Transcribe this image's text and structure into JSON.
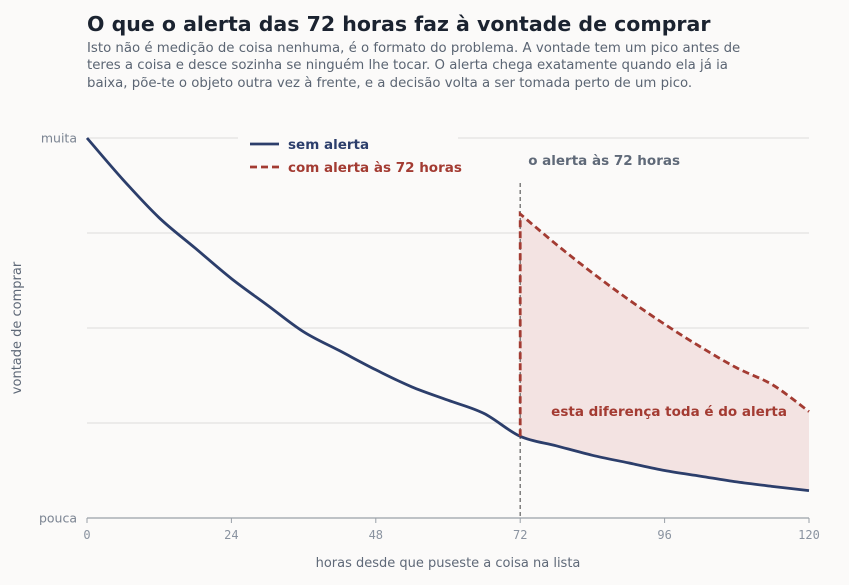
{
  "header": {
    "title": "O que o alerta das 72 horas faz à vontade de comprar",
    "subtitle": "Isto não é medição de coisa nenhuma, é o formato do problema. A vontade tem um pico antes de teres a coisa e desce sozinha se ninguém lhe tocar. O alerta chega exatamente quando ela já ia baixa, põe-te o objeto outra vez à frente, e a decisão volta a ser tomada perto de um pico."
  },
  "colors": {
    "navy": "#2c3e6b",
    "red": "#a33b32",
    "fill": "#f3e3e2",
    "grid": "#dcdcdc",
    "axis": "#9aa0a8",
    "vline": "#6b6b6b"
  },
  "chart_data": {
    "type": "line",
    "xlabel": "horas desde que puseste a coisa na lista",
    "ylabel": "vontade de comprar",
    "xlim": [
      0,
      120
    ],
    "ylim": [
      0,
      1
    ],
    "x_ticks": [
      0,
      24,
      48,
      72,
      96,
      120
    ],
    "y_tick_labels": [
      {
        "value": 1,
        "label": "muita"
      },
      {
        "value": 0,
        "label": "pouca"
      }
    ],
    "y_grid": [
      0.25,
      0.5,
      0.75,
      1
    ],
    "grid": true,
    "legend_position": "top-left",
    "series": [
      {
        "name": "sem alerta",
        "style": "solid",
        "color": "#2c3e6b",
        "x": [
          0,
          6,
          12,
          18,
          24,
          30,
          36,
          42,
          48,
          54,
          60,
          66,
          72,
          78,
          84,
          90,
          96,
          102,
          108,
          114,
          120
        ],
        "y": [
          1.0,
          0.89,
          0.79,
          0.71,
          0.63,
          0.56,
          0.49,
          0.44,
          0.39,
          0.345,
          0.31,
          0.275,
          0.215,
          0.19,
          0.165,
          0.145,
          0.125,
          0.11,
          0.095,
          0.083,
          0.072
        ]
      },
      {
        "name": "com alerta às 72 horas",
        "style": "dashed",
        "color": "#a33b32",
        "x": [
          72,
          72,
          78,
          84,
          90,
          96,
          102,
          108,
          114,
          120
        ],
        "y": [
          0.215,
          0.8,
          0.72,
          0.645,
          0.575,
          0.51,
          0.45,
          0.395,
          0.35,
          0.28
        ]
      }
    ],
    "vertical_marker": {
      "x": 72,
      "label": "o alerta às 72 horas"
    },
    "shaded_annotation": "esta diferença toda é do alerta"
  }
}
